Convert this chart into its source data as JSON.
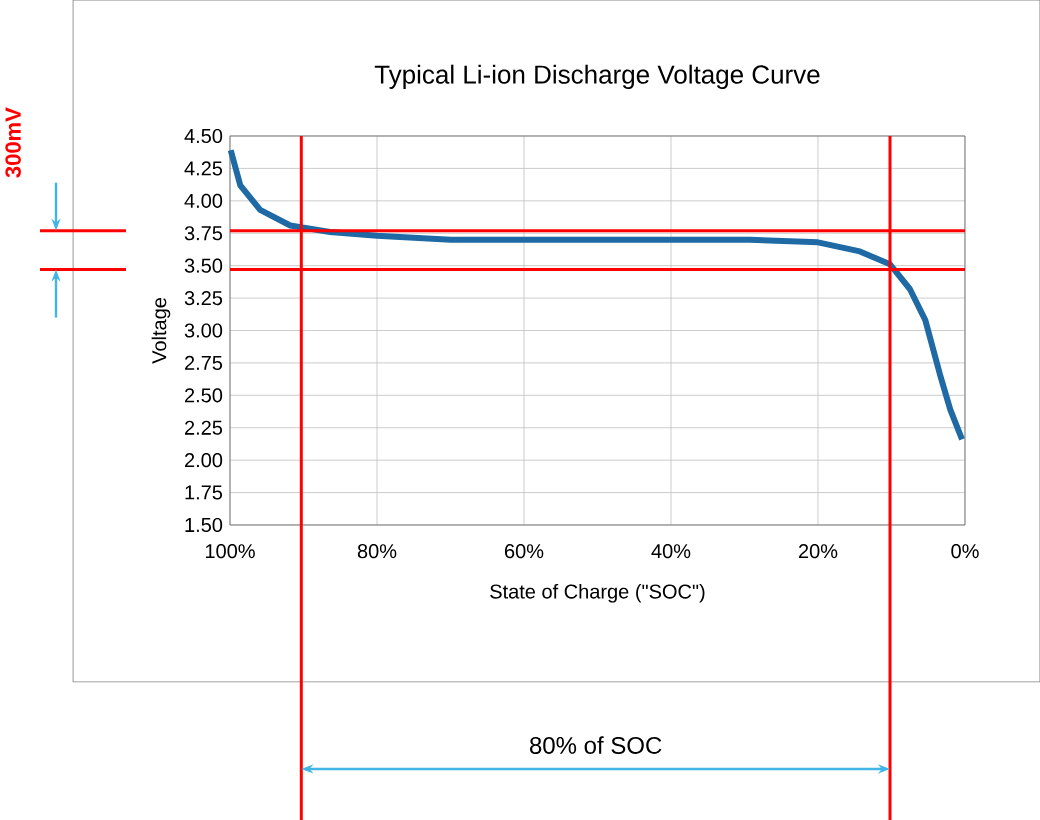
{
  "chart_data": {
    "type": "line",
    "title": "Typical Li-ion Discharge Voltage Curve",
    "xlabel": "State of Charge (\"SOC\")",
    "ylabel": "Voltage",
    "x": [
      99.9,
      98.6,
      95.9,
      91.8,
      86.4,
      80,
      70,
      60,
      49.7,
      40,
      29.3,
      20,
      14.3,
      10.2,
      7.5,
      5.4,
      3.4,
      2.0,
      0.4
    ],
    "values": [
      4.39,
      4.12,
      3.93,
      3.81,
      3.76,
      3.73,
      3.7,
      3.7,
      3.7,
      3.7,
      3.7,
      3.68,
      3.61,
      3.51,
      3.32,
      3.08,
      2.66,
      2.39,
      2.16
    ],
    "color": "#1f6aa5",
    "xlim": [
      100,
      0
    ],
    "xticks": [
      {
        "value": 100,
        "label": "100%"
      },
      {
        "value": 80,
        "label": "80%"
      },
      {
        "value": 60,
        "label": "60%"
      },
      {
        "value": 40,
        "label": "40%"
      },
      {
        "value": 20,
        "label": "20%"
      },
      {
        "value": 0,
        "label": "0%"
      }
    ],
    "ylim": [
      1.5,
      4.5
    ],
    "yticks": [
      {
        "value": 1.5,
        "label": "1.50"
      },
      {
        "value": 1.75,
        "label": "1.75"
      },
      {
        "value": 2,
        "label": "2.00"
      },
      {
        "value": 2.25,
        "label": "2.25"
      },
      {
        "value": 2.5,
        "label": "2.50"
      },
      {
        "value": 2.75,
        "label": "2.75"
      },
      {
        "value": 3,
        "label": "3.00"
      },
      {
        "value": 3.25,
        "label": "3.25"
      },
      {
        "value": 3.5,
        "label": "3.50"
      },
      {
        "value": 3.75,
        "label": "3.75"
      },
      {
        "value": 4,
        "label": "4.00"
      },
      {
        "value": 4.25,
        "label": "4.25"
      },
      {
        "value": 4.5,
        "label": "4.50"
      }
    ],
    "grid": true,
    "ref_lines": [
      {
        "axis": "y",
        "value": 3.77,
        "color": "#ff0000"
      },
      {
        "axis": "y",
        "value": 3.47,
        "color": "#ff0000"
      },
      {
        "axis": "x",
        "value": 90.3,
        "color": "#ff0000"
      },
      {
        "axis": "x",
        "value": 10.2,
        "color": "#ff0000"
      }
    ],
    "annotations": [
      "300mV",
      "80% of SOC"
    ]
  }
}
